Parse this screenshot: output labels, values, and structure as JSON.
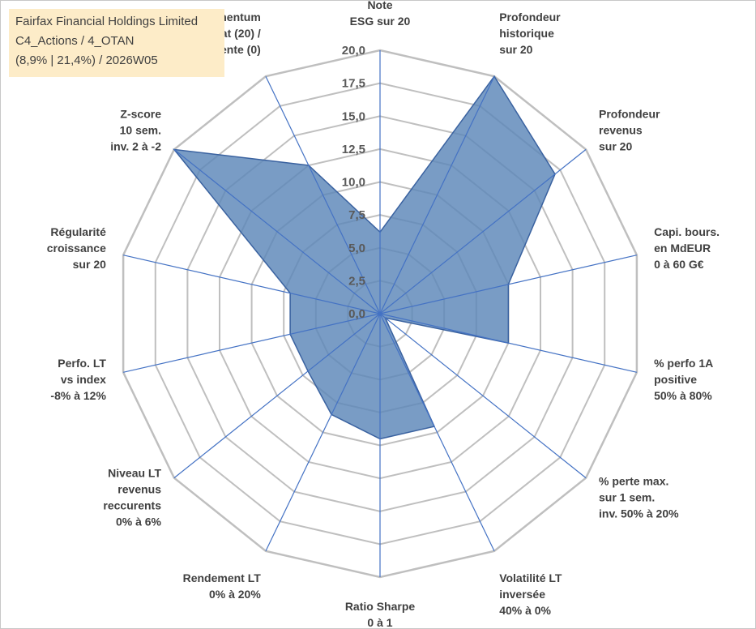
{
  "title": {
    "line1": "Fairfax Financial Holdings Limited",
    "line2": "C4_Actions / 4_OTAN",
    "line3": "(8,9% | 21,4%) / 2026W05"
  },
  "colors": {
    "area_fill": "#5b86b8",
    "area_stroke": "#3a62a0",
    "spoke": "#4472c4",
    "grid": "#bfbfbf",
    "title_bg": "#fdecc8"
  },
  "chart_data": {
    "type": "radar",
    "rmin": 0,
    "rmax": 20,
    "tick_step": 2.5,
    "tick_labels": [
      "0,0",
      "2,5",
      "5,0",
      "7,5",
      "10,0",
      "12,5",
      "15,0",
      "17,5",
      "20,0"
    ],
    "axes": [
      {
        "label": [
          "Note",
          "ESG sur 20"
        ],
        "value": 6.2
      },
      {
        "label": [
          "Profondeur",
          "historique",
          "sur 20"
        ],
        "value": 20.0
      },
      {
        "label": [
          "Profondeur",
          "revenus",
          "sur 20"
        ],
        "value": 17.0
      },
      {
        "label": [
          "Capi. bours.",
          "en MdEUR",
          "0 à 60 G€"
        ],
        "value": 10.0
      },
      {
        "label": [
          "% perfo 1A",
          "positive",
          "50% à 80%"
        ],
        "value": 10.0
      },
      {
        "label": [
          "% perte max.",
          "sur 1 sem.",
          "inv. 50% à 20%"
        ],
        "value": 0.5
      },
      {
        "label": [
          "Volatilité LT",
          "inversée",
          "40% à 0%"
        ],
        "value": 9.5
      },
      {
        "label": [
          "Ratio Sharpe",
          "0 à 1"
        ],
        "value": 9.5
      },
      {
        "label": [
          "Rendement LT",
          "0% à 20%"
        ],
        "value": 8.5
      },
      {
        "label": [
          "Niveau LT",
          "revenus",
          "reccurents",
          "0% à 6%"
        ],
        "value": 7.0
      },
      {
        "label": [
          "Perfo. LT",
          "vs index",
          "-8% à 12%"
        ],
        "value": 7.0
      },
      {
        "label": [
          "Régularité",
          "croissance",
          "sur 20"
        ],
        "value": 7.0
      },
      {
        "label": [
          "Z-score",
          "10 sem.",
          "inv. 2 à -2"
        ],
        "value": 20.0
      },
      {
        "label": [
          "Momentum",
          "Achat (20) /",
          "Vente (0)"
        ],
        "value": 12.5
      }
    ]
  }
}
